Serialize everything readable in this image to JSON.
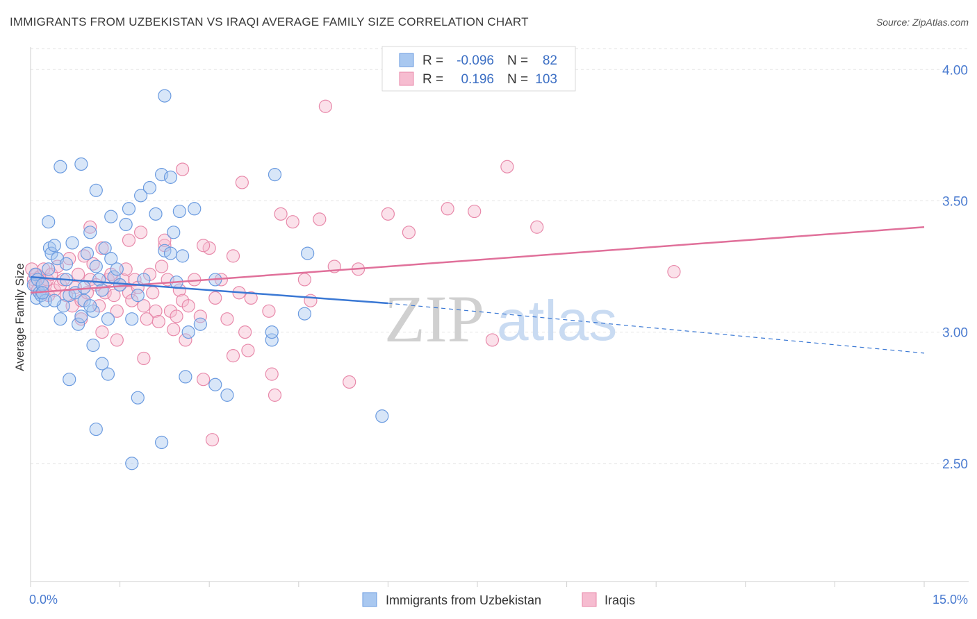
{
  "title": "IMMIGRANTS FROM UZBEKISTAN VS IRAQI AVERAGE FAMILY SIZE CORRELATION CHART",
  "source": "Source: ZipAtlas.com",
  "watermark": {
    "part1": "ZIP",
    "part2": "atlas"
  },
  "legend": {
    "rows": [
      {
        "r_label": "R =",
        "r_value": "-0.096",
        "n_label": "N =",
        "n_value": "82"
      },
      {
        "r_label": "R =",
        "r_value": "0.196",
        "n_label": "N =",
        "n_value": "103"
      }
    ]
  },
  "bottom_legend": [
    "Immigrants from Uzbekistan",
    "Iraqis"
  ],
  "colors": {
    "blue_fill": "#a9c8f0",
    "blue_stroke": "#6b9be0",
    "blue_line": "#3a78d4",
    "pink_fill": "#f6bcd0",
    "pink_stroke": "#e889aa",
    "pink_line": "#e0709a",
    "grid": "#e3e3e3",
    "axis_text": "#4a7bd0"
  },
  "chart_data": {
    "type": "scatter",
    "title": "IMMIGRANTS FROM UZBEKISTAN VS IRAQI AVERAGE FAMILY SIZE CORRELATION CHART",
    "xlabel": "",
    "ylabel": "Average Family Size",
    "xlim": [
      0,
      15
    ],
    "ylim": [
      2.05,
      4.08
    ],
    "x_tick_labels": [
      "0.0%",
      "15.0%"
    ],
    "y_ticks": [
      2.5,
      3.0,
      3.5,
      4.0
    ],
    "y_tick_labels": [
      "2.50",
      "3.00",
      "3.50",
      "4.00"
    ],
    "grid": true,
    "legend_position": "top-center",
    "series": [
      {
        "name": "Immigrants from Uzbekistan",
        "color": "#a9c8f0",
        "r": -0.096,
        "n": 82,
        "trend": {
          "x_start": 0.0,
          "y_start": 3.21,
          "x_solid_end": 6.0,
          "y_solid_end": 3.11,
          "x_end": 15.0,
          "y_end": 2.92
        },
        "points": [
          [
            0.05,
            3.18
          ],
          [
            0.08,
            3.22
          ],
          [
            0.1,
            3.13
          ],
          [
            0.12,
            3.2
          ],
          [
            0.15,
            3.15
          ],
          [
            0.18,
            3.14
          ],
          [
            0.2,
            3.18
          ],
          [
            0.25,
            3.12
          ],
          [
            0.3,
            3.24
          ],
          [
            0.32,
            3.32
          ],
          [
            0.35,
            3.3
          ],
          [
            0.4,
            3.33
          ],
          [
            0.45,
            3.28
          ],
          [
            0.5,
            3.05
          ],
          [
            0.55,
            3.1
          ],
          [
            0.6,
            3.2
          ],
          [
            0.65,
            3.14
          ],
          [
            0.7,
            3.34
          ],
          [
            0.75,
            3.15
          ],
          [
            0.8,
            3.03
          ],
          [
            0.85,
            3.06
          ],
          [
            0.9,
            3.12
          ],
          [
            0.95,
            3.3
          ],
          [
            1.0,
            3.38
          ],
          [
            1.05,
            3.08
          ],
          [
            1.1,
            3.25
          ],
          [
            1.15,
            3.2
          ],
          [
            1.2,
            3.16
          ],
          [
            1.25,
            3.32
          ],
          [
            1.3,
            3.05
          ],
          [
            1.35,
            3.28
          ],
          [
            1.4,
            3.21
          ],
          [
            1.45,
            3.24
          ],
          [
            1.5,
            3.18
          ],
          [
            1.6,
            3.41
          ],
          [
            1.7,
            3.05
          ],
          [
            1.8,
            3.14
          ],
          [
            1.9,
            3.2
          ],
          [
            2.0,
            3.55
          ],
          [
            2.2,
            3.6
          ],
          [
            2.25,
            3.31
          ],
          [
            2.35,
            3.3
          ],
          [
            2.4,
            3.38
          ],
          [
            2.45,
            3.19
          ],
          [
            2.5,
            3.46
          ],
          [
            2.55,
            3.29
          ],
          [
            2.65,
            3.0
          ],
          [
            2.75,
            3.47
          ],
          [
            2.85,
            3.03
          ],
          [
            3.1,
            3.2
          ],
          [
            0.3,
            3.42
          ],
          [
            0.5,
            3.63
          ],
          [
            0.85,
            3.64
          ],
          [
            1.1,
            3.54
          ],
          [
            1.35,
            3.44
          ],
          [
            1.65,
            3.47
          ],
          [
            1.85,
            3.52
          ],
          [
            2.1,
            3.45
          ],
          [
            2.35,
            3.59
          ],
          [
            4.1,
            3.6
          ],
          [
            2.25,
            3.9
          ],
          [
            4.6,
            3.07
          ],
          [
            4.65,
            3.3
          ],
          [
            4.05,
            2.97
          ],
          [
            4.05,
            3.0
          ],
          [
            3.3,
            2.76
          ],
          [
            3.1,
            2.8
          ],
          [
            2.6,
            2.83
          ],
          [
            1.8,
            2.75
          ],
          [
            1.3,
            2.84
          ],
          [
            0.65,
            2.82
          ],
          [
            1.2,
            2.88
          ],
          [
            1.1,
            2.63
          ],
          [
            2.2,
            2.58
          ],
          [
            1.7,
            2.5
          ],
          [
            1.05,
            2.95
          ],
          [
            5.9,
            2.68
          ],
          [
            0.2,
            3.15
          ],
          [
            0.4,
            3.12
          ],
          [
            0.6,
            3.26
          ],
          [
            0.9,
            3.17
          ],
          [
            1.0,
            3.1
          ]
        ]
      },
      {
        "name": "Iraqis",
        "color": "#f6bcd0",
        "r": 0.196,
        "n": 103,
        "trend": {
          "x_start": 0.0,
          "y_start": 3.15,
          "x_end": 15.0,
          "y_end": 3.4
        },
        "points": [
          [
            0.02,
            3.24
          ],
          [
            0.05,
            3.2
          ],
          [
            0.08,
            3.18
          ],
          [
            0.1,
            3.22
          ],
          [
            0.12,
            3.16
          ],
          [
            0.15,
            3.21
          ],
          [
            0.18,
            3.19
          ],
          [
            0.2,
            3.15
          ],
          [
            0.22,
            3.24
          ],
          [
            0.25,
            3.18
          ],
          [
            0.28,
            3.2
          ],
          [
            0.3,
            3.14
          ],
          [
            0.35,
            3.22
          ],
          [
            0.4,
            3.16
          ],
          [
            0.45,
            3.25
          ],
          [
            0.5,
            3.18
          ],
          [
            0.55,
            3.2
          ],
          [
            0.6,
            3.14
          ],
          [
            0.65,
            3.28
          ],
          [
            0.7,
            3.1
          ],
          [
            0.75,
            3.17
          ],
          [
            0.8,
            3.22
          ],
          [
            0.85,
            3.12
          ],
          [
            0.9,
            3.29
          ],
          [
            0.95,
            3.15
          ],
          [
            1.0,
            3.2
          ],
          [
            1.05,
            3.26
          ],
          [
            1.1,
            3.18
          ],
          [
            1.15,
            3.1
          ],
          [
            1.2,
            3.32
          ],
          [
            1.25,
            3.15
          ],
          [
            1.3,
            3.2
          ],
          [
            1.35,
            3.22
          ],
          [
            1.4,
            3.14
          ],
          [
            1.45,
            3.08
          ],
          [
            1.5,
            3.18
          ],
          [
            1.55,
            3.2
          ],
          [
            1.6,
            3.24
          ],
          [
            1.65,
            3.15
          ],
          [
            1.7,
            3.12
          ],
          [
            1.75,
            3.2
          ],
          [
            1.8,
            3.17
          ],
          [
            1.85,
            3.38
          ],
          [
            1.9,
            3.1
          ],
          [
            1.95,
            3.05
          ],
          [
            2.0,
            3.22
          ],
          [
            2.05,
            3.15
          ],
          [
            2.1,
            3.08
          ],
          [
            2.15,
            3.04
          ],
          [
            2.2,
            3.25
          ],
          [
            2.25,
            3.33
          ],
          [
            2.3,
            3.2
          ],
          [
            2.35,
            3.08
          ],
          [
            2.4,
            3.01
          ],
          [
            2.45,
            3.06
          ],
          [
            2.5,
            3.16
          ],
          [
            2.55,
            3.12
          ],
          [
            2.6,
            2.97
          ],
          [
            2.65,
            3.1
          ],
          [
            2.75,
            3.2
          ],
          [
            2.85,
            3.06
          ],
          [
            2.9,
            2.82
          ],
          [
            3.0,
            3.32
          ],
          [
            3.1,
            3.13
          ],
          [
            3.2,
            3.2
          ],
          [
            3.3,
            3.05
          ],
          [
            3.4,
            3.29
          ],
          [
            3.5,
            3.15
          ],
          [
            3.6,
            3.0
          ],
          [
            3.7,
            3.13
          ],
          [
            4.0,
            3.08
          ],
          [
            4.2,
            3.45
          ],
          [
            4.4,
            3.42
          ],
          [
            4.6,
            3.2
          ],
          [
            4.7,
            3.12
          ],
          [
            4.85,
            3.43
          ],
          [
            4.95,
            3.86
          ],
          [
            5.1,
            3.25
          ],
          [
            5.5,
            3.24
          ],
          [
            6.0,
            3.45
          ],
          [
            6.35,
            3.38
          ],
          [
            7.0,
            3.47
          ],
          [
            7.45,
            3.46
          ],
          [
            8.0,
            3.63
          ],
          [
            8.5,
            3.4
          ],
          [
            10.8,
            3.23
          ],
          [
            7.75,
            2.97
          ],
          [
            5.35,
            2.81
          ],
          [
            4.05,
            2.84
          ],
          [
            4.1,
            2.76
          ],
          [
            3.65,
            2.93
          ],
          [
            3.4,
            2.91
          ],
          [
            2.9,
            3.33
          ],
          [
            3.55,
            3.57
          ],
          [
            3.05,
            2.59
          ],
          [
            2.55,
            3.62
          ],
          [
            1.45,
            2.97
          ],
          [
            1.9,
            2.9
          ],
          [
            1.2,
            3.0
          ],
          [
            0.85,
            3.05
          ],
          [
            1.0,
            3.4
          ],
          [
            1.65,
            3.35
          ],
          [
            2.25,
            3.35
          ]
        ]
      }
    ]
  }
}
